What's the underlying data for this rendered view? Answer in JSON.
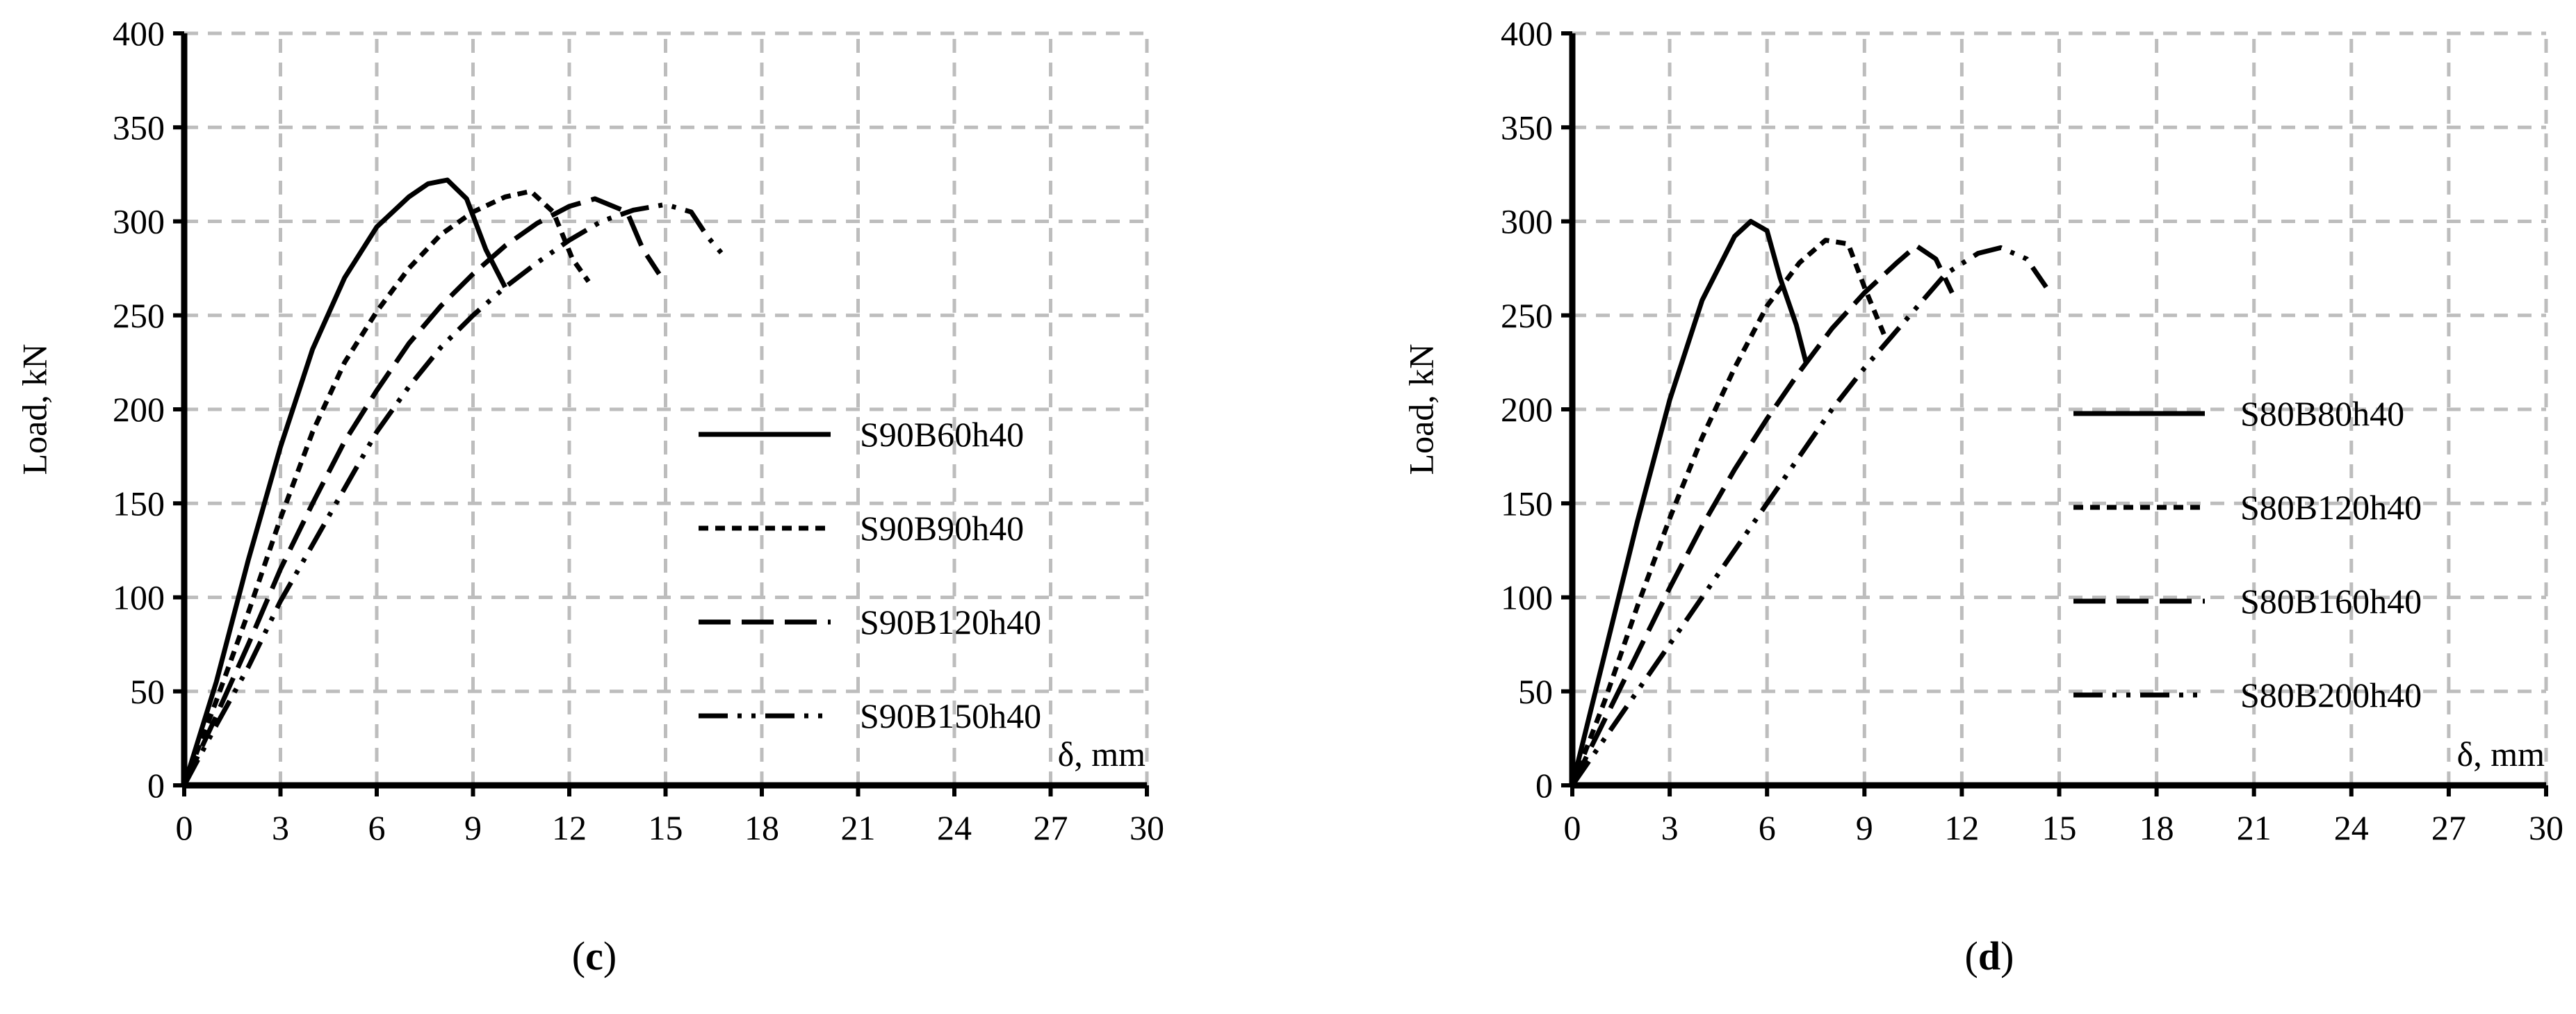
{
  "chart_data": [
    {
      "type": "line",
      "panel_label": "c",
      "ylabel": "Load, kN",
      "xlabel": "δ, mm",
      "xlim": [
        0,
        30
      ],
      "ylim": [
        0,
        400
      ],
      "x_ticks": [
        "0",
        "3",
        "6",
        "9",
        "12",
        "15",
        "18",
        "21",
        "24",
        "27",
        "30"
      ],
      "y_ticks": [
        "0",
        "50",
        "100",
        "150",
        "200",
        "250",
        "300",
        "350",
        "400"
      ],
      "grid": true,
      "legend_position": "right-middle",
      "series": [
        {
          "name": "S90B60h40",
          "style": "solid",
          "x": [
            0,
            1,
            2,
            3,
            4,
            5,
            6,
            7,
            7.6,
            8.2,
            8.8,
            9.4,
            10.0
          ],
          "y": [
            0,
            55,
            120,
            180,
            232,
            270,
            297,
            313,
            320,
            322,
            312,
            285,
            265
          ]
        },
        {
          "name": "S90B90h40",
          "style": "short-dash",
          "x": [
            0,
            1,
            2,
            3,
            4,
            5,
            6,
            7,
            8,
            9,
            10,
            10.8,
            11.5,
            12.1,
            12.6
          ],
          "y": [
            0,
            45,
            92,
            142,
            188,
            225,
            252,
            275,
            293,
            305,
            313,
            316,
            305,
            280,
            268
          ]
        },
        {
          "name": "S90B120h40",
          "style": "long-dash",
          "x": [
            0,
            1,
            2,
            3,
            4,
            5,
            6,
            7,
            8,
            9,
            10,
            11,
            12,
            12.8,
            13.8,
            14.3,
            14.8
          ],
          "y": [
            0,
            37,
            75,
            115,
            150,
            183,
            210,
            235,
            255,
            272,
            287,
            299,
            308,
            312,
            305,
            285,
            272
          ]
        },
        {
          "name": "S90B150h40",
          "style": "dash-dot-dot",
          "x": [
            0,
            1,
            2,
            3,
            4,
            5,
            6,
            7,
            8,
            9,
            10,
            11,
            12,
            13,
            14,
            15,
            15.8,
            16.3,
            16.8
          ],
          "y": [
            0,
            32,
            63,
            98,
            128,
            158,
            188,
            212,
            233,
            250,
            265,
            278,
            290,
            300,
            306,
            309,
            305,
            292,
            282
          ]
        }
      ]
    },
    {
      "type": "line",
      "panel_label": "d",
      "ylabel": "Load, kN",
      "xlabel": "δ, mm",
      "xlim": [
        0,
        30
      ],
      "ylim": [
        0,
        400
      ],
      "x_ticks": [
        "0",
        "3",
        "6",
        "9",
        "12",
        "15",
        "18",
        "21",
        "24",
        "27",
        "30"
      ],
      "y_ticks": [
        "0",
        "50",
        "100",
        "150",
        "200",
        "250",
        "300",
        "350",
        "400"
      ],
      "grid": true,
      "legend_position": "right-middle",
      "series": [
        {
          "name": "S80B80h40",
          "style": "solid",
          "x": [
            0,
            1,
            2,
            3,
            4,
            5,
            5.5,
            6,
            6.4,
            6.9,
            7.2
          ],
          "y": [
            0,
            70,
            140,
            205,
            258,
            292,
            300,
            295,
            270,
            245,
            225
          ]
        },
        {
          "name": "S80B120h40",
          "style": "short-dash",
          "x": [
            0,
            1,
            2,
            3,
            4,
            5,
            6,
            7,
            7.8,
            8.5,
            9.0,
            9.6
          ],
          "y": [
            0,
            45,
            95,
            142,
            185,
            222,
            255,
            278,
            290,
            288,
            265,
            240
          ]
        },
        {
          "name": "S80B160h40",
          "style": "long-dash",
          "x": [
            0,
            1,
            2,
            3,
            4,
            5,
            6,
            7,
            8,
            9,
            10,
            10.6,
            11.2,
            11.7
          ],
          "y": [
            0,
            35,
            70,
            105,
            138,
            168,
            195,
            220,
            243,
            262,
            278,
            287,
            280,
            262
          ]
        },
        {
          "name": "S80B200h40",
          "style": "dash-dot-dot",
          "x": [
            0,
            1,
            2,
            3,
            4,
            5,
            6,
            7,
            8,
            9,
            9.8,
            10.5,
            11.5,
            12.5,
            13.2,
            14.0,
            14.6
          ],
          "y": [
            0,
            25,
            50,
            75,
            100,
            125,
            150,
            175,
            200,
            222,
            238,
            252,
            272,
            283,
            286,
            280,
            265
          ]
        }
      ]
    }
  ]
}
